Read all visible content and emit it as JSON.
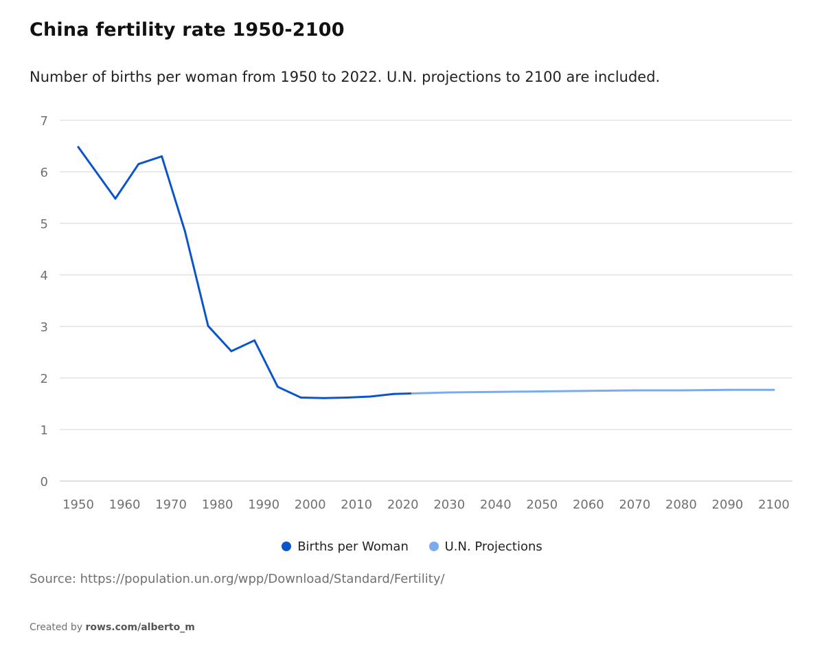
{
  "chart_data": {
    "type": "line",
    "title": "China fertility rate 1950-2100",
    "subtitle": "Number of births per woman from 1950 to 2022. U.N. projections to 2100 are included.",
    "xlabel": "",
    "ylabel": "",
    "xlim": [
      1946,
      2104
    ],
    "ylim": [
      0,
      7
    ],
    "grid": true,
    "legend_position": "bottom-center",
    "x_ticks": [
      1950,
      1960,
      1970,
      1980,
      1990,
      2000,
      2010,
      2020,
      2030,
      2040,
      2050,
      2060,
      2070,
      2080,
      2090,
      2100
    ],
    "y_ticks": [
      0,
      1,
      2,
      3,
      4,
      5,
      6,
      7
    ],
    "series": [
      {
        "name": "Births per Woman",
        "color": "#0a55c9",
        "x": [
          1950,
          1958,
          1963,
          1968,
          1973,
          1978,
          1983,
          1988,
          1993,
          1998,
          2003,
          2008,
          2013,
          2018,
          2022
        ],
        "y": [
          6.48,
          5.48,
          6.15,
          6.3,
          4.85,
          3.01,
          2.52,
          2.73,
          1.83,
          1.62,
          1.61,
          1.62,
          1.64,
          1.69,
          1.7
        ]
      },
      {
        "name": "U.N. Projections",
        "color": "#7aabee",
        "x": [
          2022,
          2030,
          2040,
          2050,
          2060,
          2070,
          2080,
          2090,
          2100
        ],
        "y": [
          1.7,
          1.72,
          1.73,
          1.74,
          1.75,
          1.76,
          1.76,
          1.77,
          1.77
        ]
      }
    ]
  },
  "source_text": "Source: https://population.un.org/wpp/Download/Standard/Fertility/",
  "credit": {
    "prefix": "Created by",
    "link": "rows.com/alberto_m"
  }
}
